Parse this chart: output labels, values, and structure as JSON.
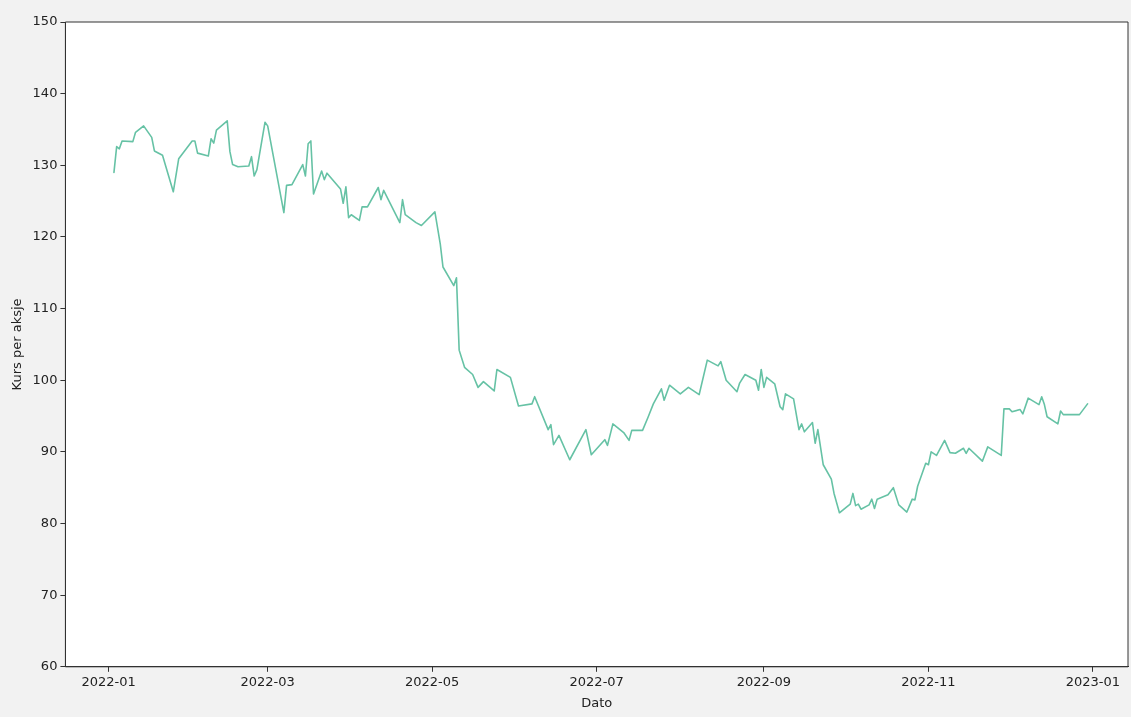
{
  "chart_data": {
    "type": "line",
    "xlabel": "Dato",
    "ylabel": "Kurs per aksje",
    "x": [
      "2022-01-03",
      "2022-01-04",
      "2022-01-05",
      "2022-01-06",
      "2022-01-10",
      "2022-01-11",
      "2022-01-14",
      "2022-01-17",
      "2022-01-18",
      "2022-01-21",
      "2022-01-25",
      "2022-01-27",
      "2022-02-01",
      "2022-02-02",
      "2022-02-03",
      "2022-02-07",
      "2022-02-08",
      "2022-02-09",
      "2022-02-10",
      "2022-02-14",
      "2022-02-15",
      "2022-02-16",
      "2022-02-18",
      "2022-02-22",
      "2022-02-23",
      "2022-02-24",
      "2022-02-25",
      "2022-02-28",
      "2022-03-01",
      "2022-03-07",
      "2022-03-08",
      "2022-03-10",
      "2022-03-14",
      "2022-03-15",
      "2022-03-16",
      "2022-03-17",
      "2022-03-18",
      "2022-03-21",
      "2022-03-22",
      "2022-03-23",
      "2022-03-28",
      "2022-03-29",
      "2022-03-30",
      "2022-03-31",
      "2022-04-01",
      "2022-04-04",
      "2022-04-05",
      "2022-04-07",
      "2022-04-11",
      "2022-04-12",
      "2022-04-13",
      "2022-04-19",
      "2022-04-20",
      "2022-04-21",
      "2022-04-25",
      "2022-04-27",
      "2022-05-02",
      "2022-05-04",
      "2022-05-05",
      "2022-05-09",
      "2022-05-10",
      "2022-05-11",
      "2022-05-13",
      "2022-05-16",
      "2022-05-18",
      "2022-05-20",
      "2022-05-24",
      "2022-05-25",
      "2022-05-30",
      "2022-06-02",
      "2022-06-07",
      "2022-06-08",
      "2022-06-13",
      "2022-06-14",
      "2022-06-15",
      "2022-06-17",
      "2022-06-21",
      "2022-06-27",
      "2022-06-29",
      "2022-07-04",
      "2022-07-05",
      "2022-07-07",
      "2022-07-11",
      "2022-07-13",
      "2022-07-14",
      "2022-07-18",
      "2022-07-20",
      "2022-07-22",
      "2022-07-25",
      "2022-07-26",
      "2022-07-28",
      "2022-08-01",
      "2022-08-04",
      "2022-08-08",
      "2022-08-11",
      "2022-08-15",
      "2022-08-16",
      "2022-08-18",
      "2022-08-22",
      "2022-08-23",
      "2022-08-25",
      "2022-08-29",
      "2022-08-30",
      "2022-08-31",
      "2022-09-01",
      "2022-09-02",
      "2022-09-05",
      "2022-09-07",
      "2022-09-08",
      "2022-09-09",
      "2022-09-12",
      "2022-09-14",
      "2022-09-15",
      "2022-09-16",
      "2022-09-19",
      "2022-09-20",
      "2022-09-21",
      "2022-09-23",
      "2022-09-26",
      "2022-09-27",
      "2022-09-29",
      "2022-10-03",
      "2022-10-04",
      "2022-10-05",
      "2022-10-06",
      "2022-10-07",
      "2022-10-10",
      "2022-10-11",
      "2022-10-12",
      "2022-10-13",
      "2022-10-17",
      "2022-10-19",
      "2022-10-21",
      "2022-10-24",
      "2022-10-26",
      "2022-10-27",
      "2022-10-28",
      "2022-10-31",
      "2022-11-01",
      "2022-11-02",
      "2022-11-04",
      "2022-11-07",
      "2022-11-09",
      "2022-11-11",
      "2022-11-14",
      "2022-11-15",
      "2022-11-16",
      "2022-11-21",
      "2022-11-23",
      "2022-11-28",
      "2022-11-29",
      "2022-12-01",
      "2022-12-02",
      "2022-12-05",
      "2022-12-06",
      "2022-12-08",
      "2022-12-12",
      "2022-12-13",
      "2022-12-14",
      "2022-12-15",
      "2022-12-19",
      "2022-12-20",
      "2022-12-21",
      "2022-12-27",
      "2022-12-30"
    ],
    "series": [
      {
        "color": "#66c2a5",
        "values": [
          129.0,
          132.6,
          132.3,
          133.4,
          133.3,
          134.6,
          135.5,
          133.9,
          132.0,
          131.4,
          126.3,
          130.9,
          133.4,
          133.4,
          131.7,
          131.3,
          133.7,
          133.1,
          134.9,
          136.2,
          131.9,
          130.1,
          129.8,
          129.9,
          131.2,
          128.5,
          129.4,
          136.0,
          135.5,
          123.4,
          127.2,
          127.3,
          130.1,
          128.5,
          133.0,
          133.4,
          126.0,
          129.2,
          128.0,
          128.9,
          126.7,
          124.7,
          127.0,
          122.7,
          123.1,
          122.3,
          124.2,
          124.2,
          126.9,
          125.2,
          126.5,
          122.0,
          125.2,
          123.1,
          122.0,
          121.6,
          123.5,
          119.0,
          115.8,
          113.2,
          114.3,
          104.2,
          101.8,
          100.8,
          99.0,
          99.8,
          98.5,
          101.5,
          100.4,
          96.4,
          96.7,
          97.7,
          93.1,
          93.8,
          91.0,
          92.3,
          88.9,
          93.1,
          89.6,
          91.7,
          90.9,
          93.9,
          92.7,
          91.6,
          93.0,
          93.0,
          94.8,
          96.7,
          98.8,
          97.2,
          99.3,
          98.1,
          99.0,
          98.0,
          102.8,
          102.0,
          102.6,
          100.0,
          98.4,
          99.6,
          100.8,
          100.0,
          98.6,
          101.5,
          99.0,
          100.4,
          99.5,
          96.3,
          95.9,
          98.1,
          97.4,
          93.1,
          93.9,
          92.8,
          94.1,
          91.2,
          93.1,
          88.2,
          86.2,
          84.2,
          81.5,
          82.7,
          84.2,
          82.5,
          82.7,
          82.0,
          82.6,
          83.4,
          82.1,
          83.4,
          84.0,
          85.0,
          82.6,
          81.6,
          83.4,
          83.3,
          85.2,
          88.4,
          88.2,
          90.0,
          89.5,
          91.6,
          89.9,
          89.8,
          90.5,
          89.8,
          90.5,
          88.7,
          90.7,
          89.5,
          96.0,
          96.0,
          95.6,
          95.9,
          95.3,
          97.5,
          96.6,
          97.7,
          96.6,
          94.9,
          93.9,
          95.7,
          95.2,
          95.2,
          96.7
        ]
      }
    ],
    "xlim": [
      "2021-12-16",
      "2023-01-14"
    ],
    "xticks": [
      "2022-01",
      "2022-03",
      "2022-05",
      "2022-07",
      "2022-09",
      "2022-11",
      "2023-01"
    ],
    "ylim": [
      60,
      150
    ],
    "yticks": [
      60,
      70,
      80,
      90,
      100,
      110,
      120,
      130,
      140,
      150
    ],
    "grid": false,
    "legend": false,
    "marker": "none",
    "line_style": "solid"
  }
}
